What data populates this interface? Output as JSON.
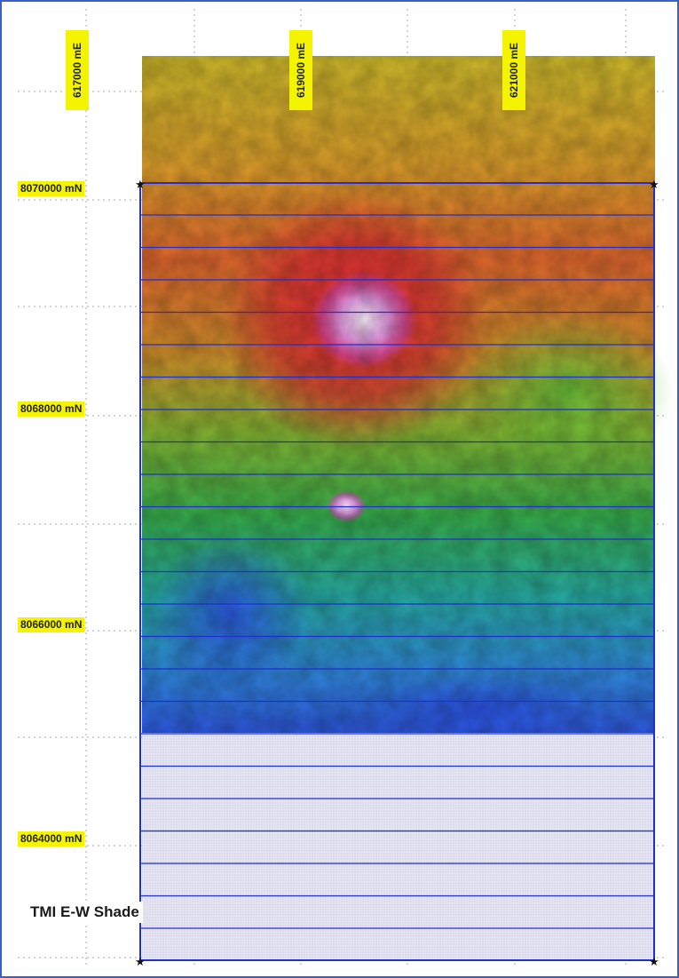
{
  "map": {
    "title": "TMI E-W Shade",
    "eastings": [
      "617000 mE",
      "619000 mE",
      "621000 mE"
    ],
    "northings": [
      "8070000 mN",
      "8068000 mN",
      "8066000 mN",
      "8064000 mN"
    ],
    "colors": {
      "frame": "#3a5fc8",
      "survey_lines": "#1f2fd0",
      "label_bg": "#f4f400",
      "unsurveyed_fill": "#dcdcf0"
    },
    "layers": [
      "TMI shaded colour grid",
      "E-W flight lines",
      "survey boundary",
      "unsurveyed area"
    ]
  }
}
